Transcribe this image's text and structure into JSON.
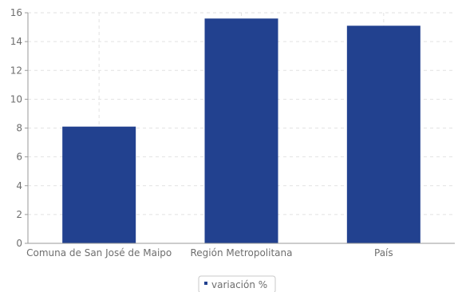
{
  "chart_data": {
    "type": "bar",
    "categories": [
      "Comuna de San José de Maipo",
      "Región Metropolitana",
      "País"
    ],
    "series": [
      {
        "name": "variación %",
        "values": [
          8.1,
          15.6,
          15.1
        ]
      }
    ],
    "y_ticks": [
      "0",
      "2",
      "4",
      "6",
      "8",
      "10",
      "12",
      "14",
      "16"
    ],
    "ylim": [
      0,
      16
    ],
    "grid": true,
    "legend": "bottom-center",
    "bar_color": "#22418f"
  }
}
